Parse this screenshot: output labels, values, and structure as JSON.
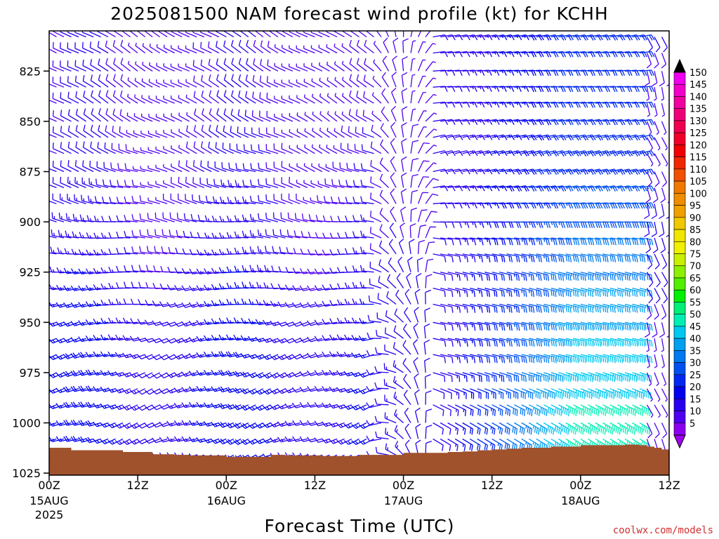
{
  "chart_data": {
    "type": "wind-barb-time-height",
    "title": "2025081500 NAM forecast wind profile (kt) for KCHH",
    "xlabel": "Forecast Time (UTC)",
    "credit": "coolwx.com/models",
    "y_ticks": [
      "825",
      "850",
      "875",
      "900",
      "925",
      "950",
      "975",
      "1000",
      "1025"
    ],
    "y_values_hpa": [
      825,
      850,
      875,
      900,
      925,
      950,
      975,
      1000,
      1025
    ],
    "ylim_hpa": [
      805,
      1026
    ],
    "x_ticks": [
      {
        "time": "00Z",
        "line2": "15AUG",
        "line3": "2025",
        "hour": 0
      },
      {
        "time": "12Z",
        "line2": "",
        "line3": "",
        "hour": 12
      },
      {
        "time": "00Z",
        "line2": "16AUG",
        "line3": "",
        "hour": 24
      },
      {
        "time": "12Z",
        "line2": "",
        "line3": "",
        "hour": 36
      },
      {
        "time": "00Z",
        "line2": "17AUG",
        "line3": "",
        "hour": 48
      },
      {
        "time": "12Z",
        "line2": "",
        "line3": "",
        "hour": 60
      },
      {
        "time": "00Z",
        "line2": "18AUG",
        "line3": "",
        "hour": 72
      },
      {
        "time": "12Z",
        "line2": "",
        "line3": "",
        "hour": 84
      }
    ],
    "xlim_hours": [
      0,
      84
    ],
    "colorbar": {
      "labels": [
        "150",
        "145",
        "140",
        "135",
        "130",
        "125",
        "120",
        "115",
        "110",
        "105",
        "100",
        "95",
        "90",
        "85",
        "80",
        "75",
        "70",
        "65",
        "60",
        "55",
        "50",
        "45",
        "40",
        "35",
        "30",
        "25",
        "20",
        "15",
        "10",
        "5"
      ],
      "colors": [
        "#f000f0",
        "#f000c8",
        "#f000a0",
        "#f00078",
        "#f00050",
        "#f00028",
        "#f00000",
        "#f02800",
        "#f05000",
        "#f07800",
        "#f08c00",
        "#f0a000",
        "#f0c800",
        "#f0e600",
        "#f0f000",
        "#c8f000",
        "#8cf000",
        "#50f000",
        "#00f000",
        "#00f078",
        "#00f0b4",
        "#00c8f0",
        "#00a0f0",
        "#0078f0",
        "#0050f0",
        "#0028f0",
        "#0000f0",
        "#2800f0",
        "#5000f0",
        "#8c00f0"
      ],
      "over_color": "#000000",
      "under_color": "#a000f0"
    },
    "terrain": {
      "color": "#a0522d",
      "surface_pressure_hpa": [
        [
          0,
          1012.4
        ],
        [
          1,
          1012.4
        ],
        [
          3,
          1013.6
        ],
        [
          6,
          1013.6
        ],
        [
          10,
          1014.5
        ],
        [
          14,
          1015.6
        ],
        [
          17,
          1015.9
        ],
        [
          19,
          1016.2
        ],
        [
          24,
          1016.9
        ],
        [
          28,
          1016.9
        ],
        [
          30,
          1015.9
        ],
        [
          32,
          1016.2
        ],
        [
          34,
          1016.2
        ],
        [
          37,
          1016.5
        ],
        [
          40,
          1016.5
        ],
        [
          42,
          1015.9
        ],
        [
          45,
          1015.9
        ],
        [
          48,
          1014.9
        ],
        [
          52,
          1014.9
        ],
        [
          54,
          1014.5
        ],
        [
          56,
          1014.2
        ],
        [
          58,
          1013.6
        ],
        [
          60,
          1013.2
        ],
        [
          62,
          1012.8
        ],
        [
          64,
          1012.4
        ],
        [
          68,
          1011.8
        ],
        [
          72,
          1011.1
        ],
        [
          76,
          1011.1
        ],
        [
          78,
          1010.8
        ],
        [
          80,
          1011.1
        ],
        [
          81,
          1011.8
        ],
        [
          82,
          1012.4
        ],
        [
          83,
          1013.2
        ],
        [
          84,
          1013.9
        ]
      ]
    },
    "barbs": {
      "levels_hpa": [
        808,
        816,
        825,
        833,
        841,
        850,
        858,
        866,
        875,
        883,
        891,
        900,
        908,
        916,
        925,
        933,
        941,
        950,
        958,
        966,
        975,
        983,
        991,
        1000,
        1008,
        1016
      ],
      "hours_step": 1,
      "sample": [
        {
          "regime": "hours 0-36, 808-850 hPa",
          "direction_deg": 300,
          "speed_kt": 10
        },
        {
          "regime": "hours 0-48, 900-1000 hPa",
          "direction_deg": 250,
          "speed_kt": 15
        },
        {
          "regime": "hours 56-80, 808-900 hPa",
          "direction_deg": 80,
          "speed_kt": 25
        },
        {
          "regime": "hours 60-80, 925-1000 hPa",
          "direction_deg": 110,
          "speed_kt": 35
        },
        {
          "regime": "hours 81-84, 900-1016 hPa",
          "direction_deg": 160,
          "speed_kt": 10
        }
      ]
    }
  }
}
